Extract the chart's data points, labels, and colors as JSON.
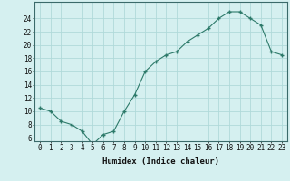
{
  "x": [
    0,
    1,
    2,
    3,
    4,
    5,
    6,
    7,
    8,
    9,
    10,
    11,
    12,
    13,
    14,
    15,
    16,
    17,
    18,
    19,
    20,
    21,
    22,
    23
  ],
  "y": [
    10.5,
    10.0,
    8.5,
    8.0,
    7.0,
    5.0,
    6.5,
    7.0,
    10.0,
    12.5,
    16.0,
    17.5,
    18.5,
    19.0,
    20.5,
    21.5,
    22.5,
    24.0,
    25.0,
    25.0,
    24.0,
    23.0,
    19.0,
    18.5
  ],
  "line_color": "#2d7a6a",
  "marker_color": "#2d7a6a",
  "bg_color": "#d5f0f0",
  "grid_color": "#b0dada",
  "xlabel": "Humidex (Indice chaleur)",
  "ylabel_ticks": [
    6,
    8,
    10,
    12,
    14,
    16,
    18,
    20,
    22,
    24
  ],
  "xlim": [
    -0.5,
    23.5
  ],
  "ylim": [
    5.5,
    26.5
  ],
  "label_fontsize": 6.5,
  "tick_fontsize": 5.5
}
